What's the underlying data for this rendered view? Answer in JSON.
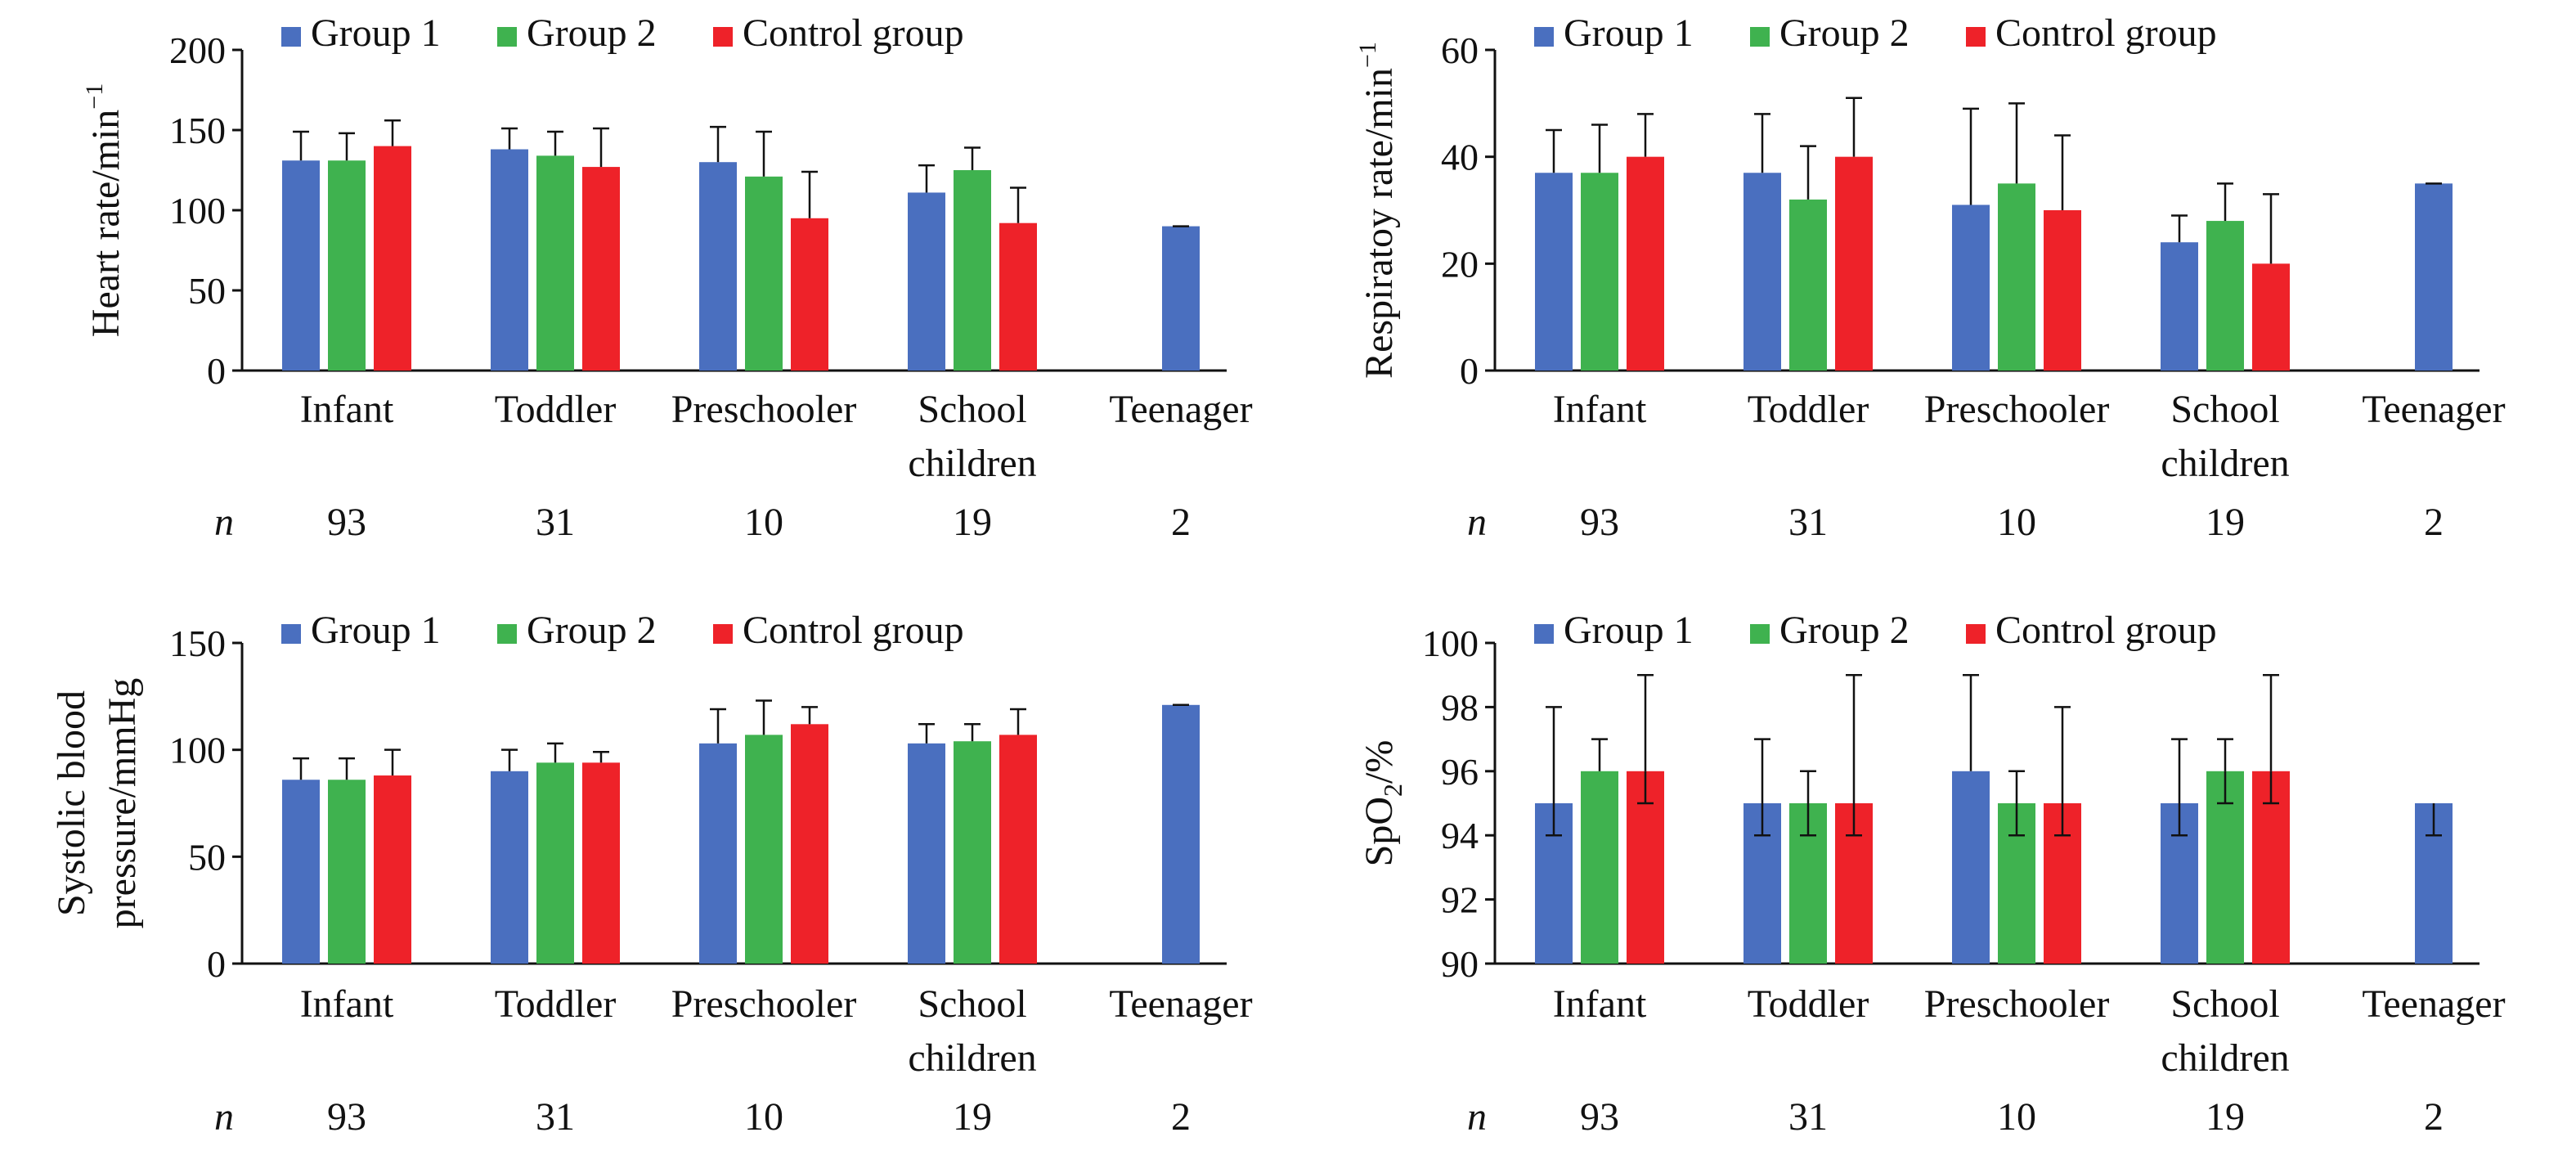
{
  "colors": {
    "group1": "#4a6fbf",
    "group2": "#3fb24f",
    "control": "#ee2229",
    "axis": "#111111"
  },
  "legend": [
    "Group 1",
    "Group 2",
    "Control group"
  ],
  "categories": [
    [
      "Infant"
    ],
    [
      "Toddler"
    ],
    [
      "Preschooler"
    ],
    [
      "School",
      "children"
    ],
    [
      "Teenager"
    ]
  ],
  "n_label": "n",
  "n_values": [
    "93",
    "31",
    "10",
    "19",
    "2"
  ],
  "chart_data": [
    {
      "type": "bar",
      "ylabel": "Heart rate/min",
      "ylabel_sup": "−1",
      "ylim": [
        0,
        200
      ],
      "yticks": [
        "0",
        "50",
        "100",
        "150",
        "200"
      ],
      "categories": [
        "Infant",
        "Toddler",
        "Preschooler",
        "School children",
        "Teenager"
      ],
      "series": [
        {
          "name": "Group 1",
          "values": [
            131,
            138,
            130,
            111,
            90
          ],
          "err": [
            18,
            13,
            22,
            17,
            0
          ]
        },
        {
          "name": "Group 2",
          "values": [
            131,
            134,
            121,
            125,
            null
          ],
          "err": [
            17,
            15,
            28,
            14,
            null
          ]
        },
        {
          "name": "Control group",
          "values": [
            140,
            127,
            95,
            92,
            null
          ],
          "err": [
            16,
            24,
            29,
            22,
            null
          ]
        }
      ],
      "legend_position": "top"
    },
    {
      "type": "bar",
      "ylabel": "Respiratoy rate/min",
      "ylabel_sup": "−1",
      "ylim": [
        0,
        60
      ],
      "yticks": [
        "0",
        "20",
        "40",
        "60"
      ],
      "categories": [
        "Infant",
        "Toddler",
        "Preschooler",
        "School children",
        "Teenager"
      ],
      "series": [
        {
          "name": "Group 1",
          "values": [
            37,
            37,
            31,
            24,
            35
          ],
          "err": [
            8,
            11,
            18,
            5,
            0
          ]
        },
        {
          "name": "Group 2",
          "values": [
            37,
            32,
            35,
            28,
            null
          ],
          "err": [
            9,
            10,
            15,
            7,
            null
          ]
        },
        {
          "name": "Control group",
          "values": [
            40,
            40,
            30,
            20,
            null
          ],
          "err": [
            8,
            11,
            14,
            13,
            null
          ]
        }
      ],
      "legend_position": "top"
    },
    {
      "type": "bar",
      "ylabel": "Systolic blood",
      "ylabel2": "pressure/mmHg",
      "ylim": [
        0,
        150
      ],
      "yticks": [
        "0",
        "50",
        "100",
        "150"
      ],
      "categories": [
        "Infant",
        "Toddler",
        "Preschooler",
        "School children",
        "Teenager"
      ],
      "series": [
        {
          "name": "Group 1",
          "values": [
            86,
            90,
            103,
            103,
            121
          ],
          "err": [
            10,
            10,
            16,
            9,
            0
          ]
        },
        {
          "name": "Group 2",
          "values": [
            86,
            94,
            107,
            104,
            null
          ],
          "err": [
            10,
            9,
            16,
            8,
            null
          ]
        },
        {
          "name": "Control group",
          "values": [
            88,
            94,
            112,
            107,
            null
          ],
          "err": [
            12,
            5,
            8,
            12,
            null
          ]
        }
      ],
      "legend_position": "top"
    },
    {
      "type": "bar",
      "ylabel": "SpO",
      "ylabel_sub": "2",
      "ylabel_suffix": "/%",
      "ylim": [
        90,
        100
      ],
      "yticks": [
        "90",
        "92",
        "94",
        "96",
        "98",
        "100"
      ],
      "categories": [
        "Infant",
        "Toddler",
        "Preschooler",
        "School children",
        "Teenager"
      ],
      "series": [
        {
          "name": "Group 1",
          "values": [
            95,
            95,
            96,
            95,
            95
          ],
          "err_low": [
            1,
            1,
            0,
            1,
            1
          ],
          "err_high": [
            3,
            2,
            3,
            2,
            0
          ]
        },
        {
          "name": "Group 2",
          "values": [
            96,
            95,
            95,
            96,
            null
          ],
          "err_low": [
            0,
            1,
            1,
            1,
            null
          ],
          "err_high": [
            1,
            1,
            1,
            1,
            null
          ]
        },
        {
          "name": "Control group",
          "values": [
            96,
            95,
            95,
            96,
            null
          ],
          "err_low": [
            1,
            1,
            1,
            1,
            null
          ],
          "err_high": [
            3,
            4,
            3,
            3,
            null
          ]
        }
      ],
      "legend_position": "top"
    }
  ]
}
